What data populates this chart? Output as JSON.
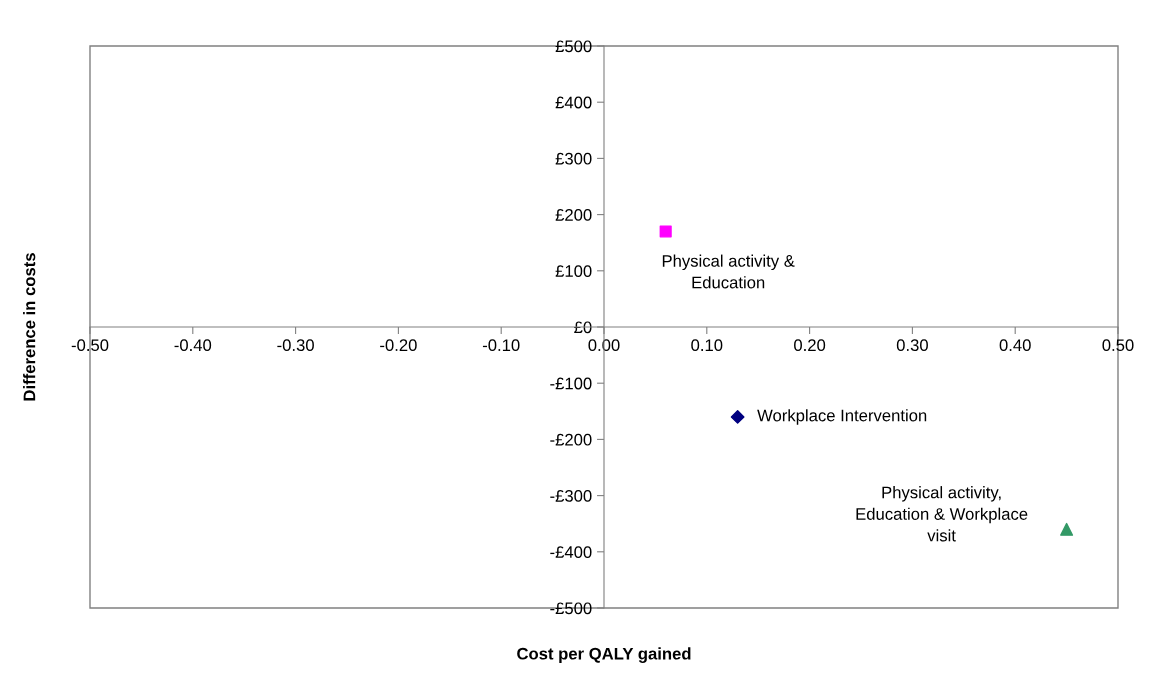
{
  "chart_data": {
    "type": "scatter",
    "xlabel": "Cost per QALY gained",
    "ylabel": "Difference in costs",
    "series": [
      {
        "marker": "diamond",
        "color": "#000080",
        "x": [
          0.13
        ],
        "values": [
          -160
        ]
      },
      {
        "marker": "square",
        "color": "#ff00ff",
        "x": [
          0.06
        ],
        "values": [
          170
        ]
      },
      {
        "marker": "triangle",
        "color": "#339966",
        "x": [
          0.45
        ],
        "values": [
          -360
        ]
      }
    ],
    "annotations": [
      {
        "text": "Workplace Intervention",
        "x": 0.13,
        "y": -160
      },
      {
        "text": "Physical activity &\nEducation",
        "x": 0.06,
        "y": 170
      },
      {
        "text": "Physical activity,\nEducation & Workplace\nvisit",
        "x": 0.45,
        "y": -360
      }
    ],
    "xlim": [
      -0.5,
      0.5
    ],
    "ylim": [
      -500,
      500
    ],
    "xticks": [
      {
        "value": -0.5,
        "label": "-0.50"
      },
      {
        "value": -0.4,
        "label": "-0.40"
      },
      {
        "value": -0.3,
        "label": "-0.30"
      },
      {
        "value": -0.2,
        "label": "-0.20"
      },
      {
        "value": -0.1,
        "label": "-0.10"
      },
      {
        "value": 0,
        "label": "0.00"
      },
      {
        "value": 0.1,
        "label": "0.10"
      },
      {
        "value": 0.2,
        "label": "0.20"
      },
      {
        "value": 0.3,
        "label": "0.30"
      },
      {
        "value": 0.4,
        "label": "0.40"
      },
      {
        "value": 0.5,
        "label": "0.50"
      }
    ],
    "yticks": [
      {
        "value": -500,
        "label": "-£500"
      },
      {
        "value": -400,
        "label": "-£400"
      },
      {
        "value": -300,
        "label": "-£300"
      },
      {
        "value": -200,
        "label": "-£200"
      },
      {
        "value": -100,
        "label": "-£100"
      },
      {
        "value": 0,
        "label": "£0"
      },
      {
        "value": 100,
        "label": "£100"
      },
      {
        "value": 200,
        "label": "£200"
      },
      {
        "value": 300,
        "label": "£300"
      },
      {
        "value": 400,
        "label": "£400"
      },
      {
        "value": 500,
        "label": "£500"
      }
    ],
    "grid": false,
    "legend": false
  }
}
